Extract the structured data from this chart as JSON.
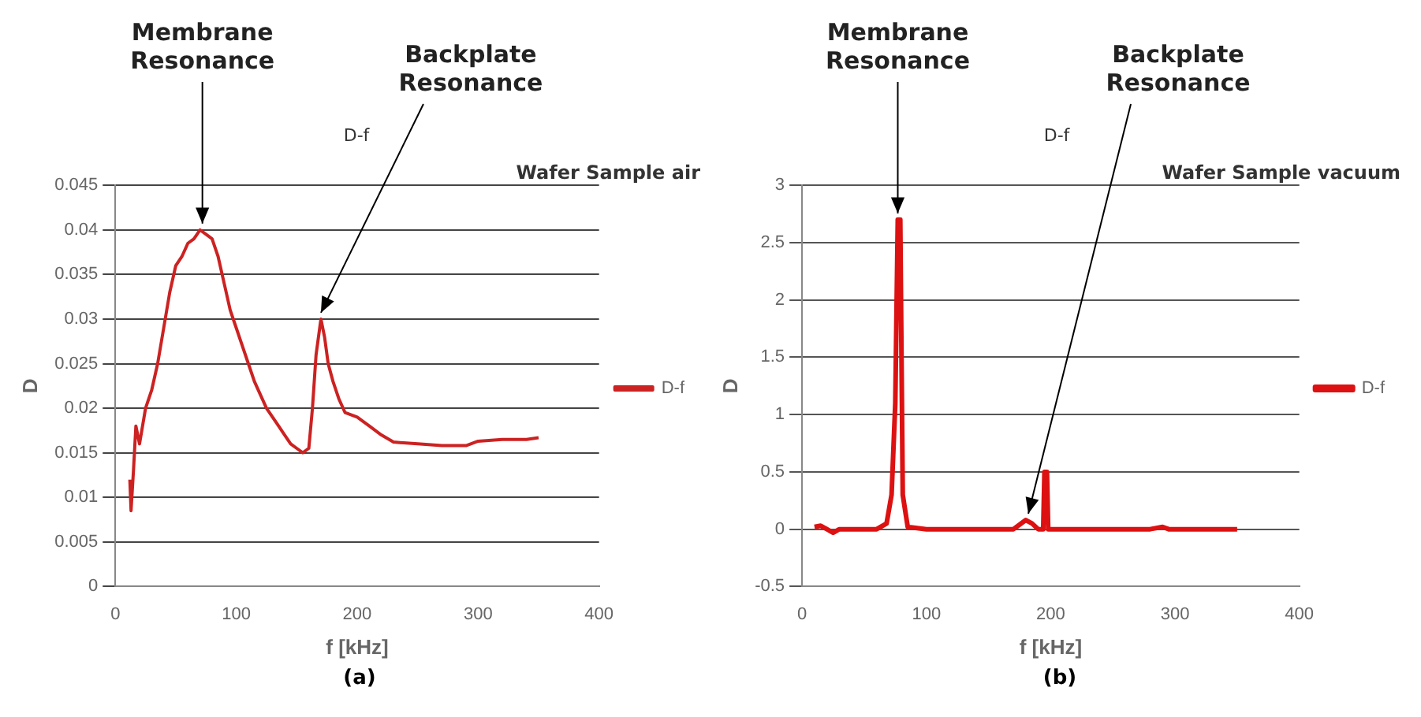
{
  "chart_data": [
    {
      "type": "line",
      "title": "D-f",
      "subtitle": "Wafer Sample air",
      "xlabel": "f [kHz]",
      "ylabel": "D",
      "xlim": [
        0,
        400
      ],
      "xticks": [
        0,
        100,
        200,
        300,
        400
      ],
      "ylim": [
        0,
        0.045
      ],
      "yticks": [
        0,
        0.005,
        0.01,
        0.015,
        0.02,
        0.025,
        0.03,
        0.035,
        0.04,
        0.045
      ],
      "grid": "y",
      "legend": "right",
      "marker": "none",
      "series": [
        {
          "name": "D-f",
          "color": "#cc2222",
          "x": [
            12,
            13,
            15,
            17,
            20,
            25,
            30,
            35,
            40,
            45,
            50,
            55,
            60,
            65,
            70,
            75,
            80,
            85,
            90,
            95,
            100,
            105,
            110,
            115,
            120,
            125,
            130,
            135,
            140,
            145,
            150,
            155,
            160,
            163,
            166,
            170,
            173,
            176,
            180,
            185,
            190,
            200,
            210,
            220,
            230,
            250,
            270,
            290,
            300,
            320,
            340,
            350
          ],
          "values": [
            0.012,
            0.0085,
            0.013,
            0.018,
            0.016,
            0.02,
            0.022,
            0.025,
            0.029,
            0.033,
            0.036,
            0.037,
            0.0385,
            0.039,
            0.04,
            0.0395,
            0.039,
            0.037,
            0.034,
            0.031,
            0.029,
            0.027,
            0.025,
            0.023,
            0.0215,
            0.02,
            0.019,
            0.018,
            0.017,
            0.016,
            0.0155,
            0.015,
            0.0155,
            0.02,
            0.026,
            0.03,
            0.028,
            0.025,
            0.023,
            0.021,
            0.0195,
            0.019,
            0.018,
            0.017,
            0.0162,
            0.016,
            0.0158,
            0.0158,
            0.0163,
            0.0165,
            0.0165,
            0.0167
          ]
        }
      ],
      "annotations": [
        {
          "text": "Membrane Resonance",
          "x": 72,
          "y": 0.04
        },
        {
          "text": "Backplate Resonance",
          "x": 170,
          "y": 0.03
        },
        "(a)"
      ]
    },
    {
      "type": "line",
      "title": "D-f",
      "subtitle": "Wafer Sample vacuum",
      "xlabel": "f [kHz]",
      "ylabel": "D",
      "xlim": [
        0,
        400
      ],
      "xticks": [
        0,
        100,
        200,
        300,
        400
      ],
      "ylim": [
        -0.5,
        3
      ],
      "yticks": [
        -0.5,
        0,
        0.5,
        1,
        1.5,
        2,
        2.5,
        3
      ],
      "grid": "y",
      "legend": "right",
      "marker": "none",
      "series": [
        {
          "name": "D-f",
          "color": "#dd1111",
          "x": [
            10,
            15,
            20,
            25,
            30,
            60,
            68,
            72,
            75,
            77,
            79,
            81,
            85,
            100,
            170,
            180,
            185,
            190,
            194,
            195,
            197,
            198,
            280,
            290,
            295,
            350
          ],
          "values": [
            0.02,
            0.03,
            0,
            -0.03,
            0,
            0,
            0.05,
            0.3,
            1.1,
            2.7,
            2.7,
            0.3,
            0.02,
            0,
            0,
            0.08,
            0.05,
            0,
            0,
            0.5,
            0.5,
            0,
            0,
            0.02,
            0,
            0
          ]
        }
      ],
      "annotations": [
        {
          "text": "Membrane Resonance",
          "x": 77,
          "y": 2.7
        },
        {
          "text": "Backplate Resonance",
          "x": 182,
          "y": 0.08
        },
        "(b)"
      ]
    }
  ]
}
